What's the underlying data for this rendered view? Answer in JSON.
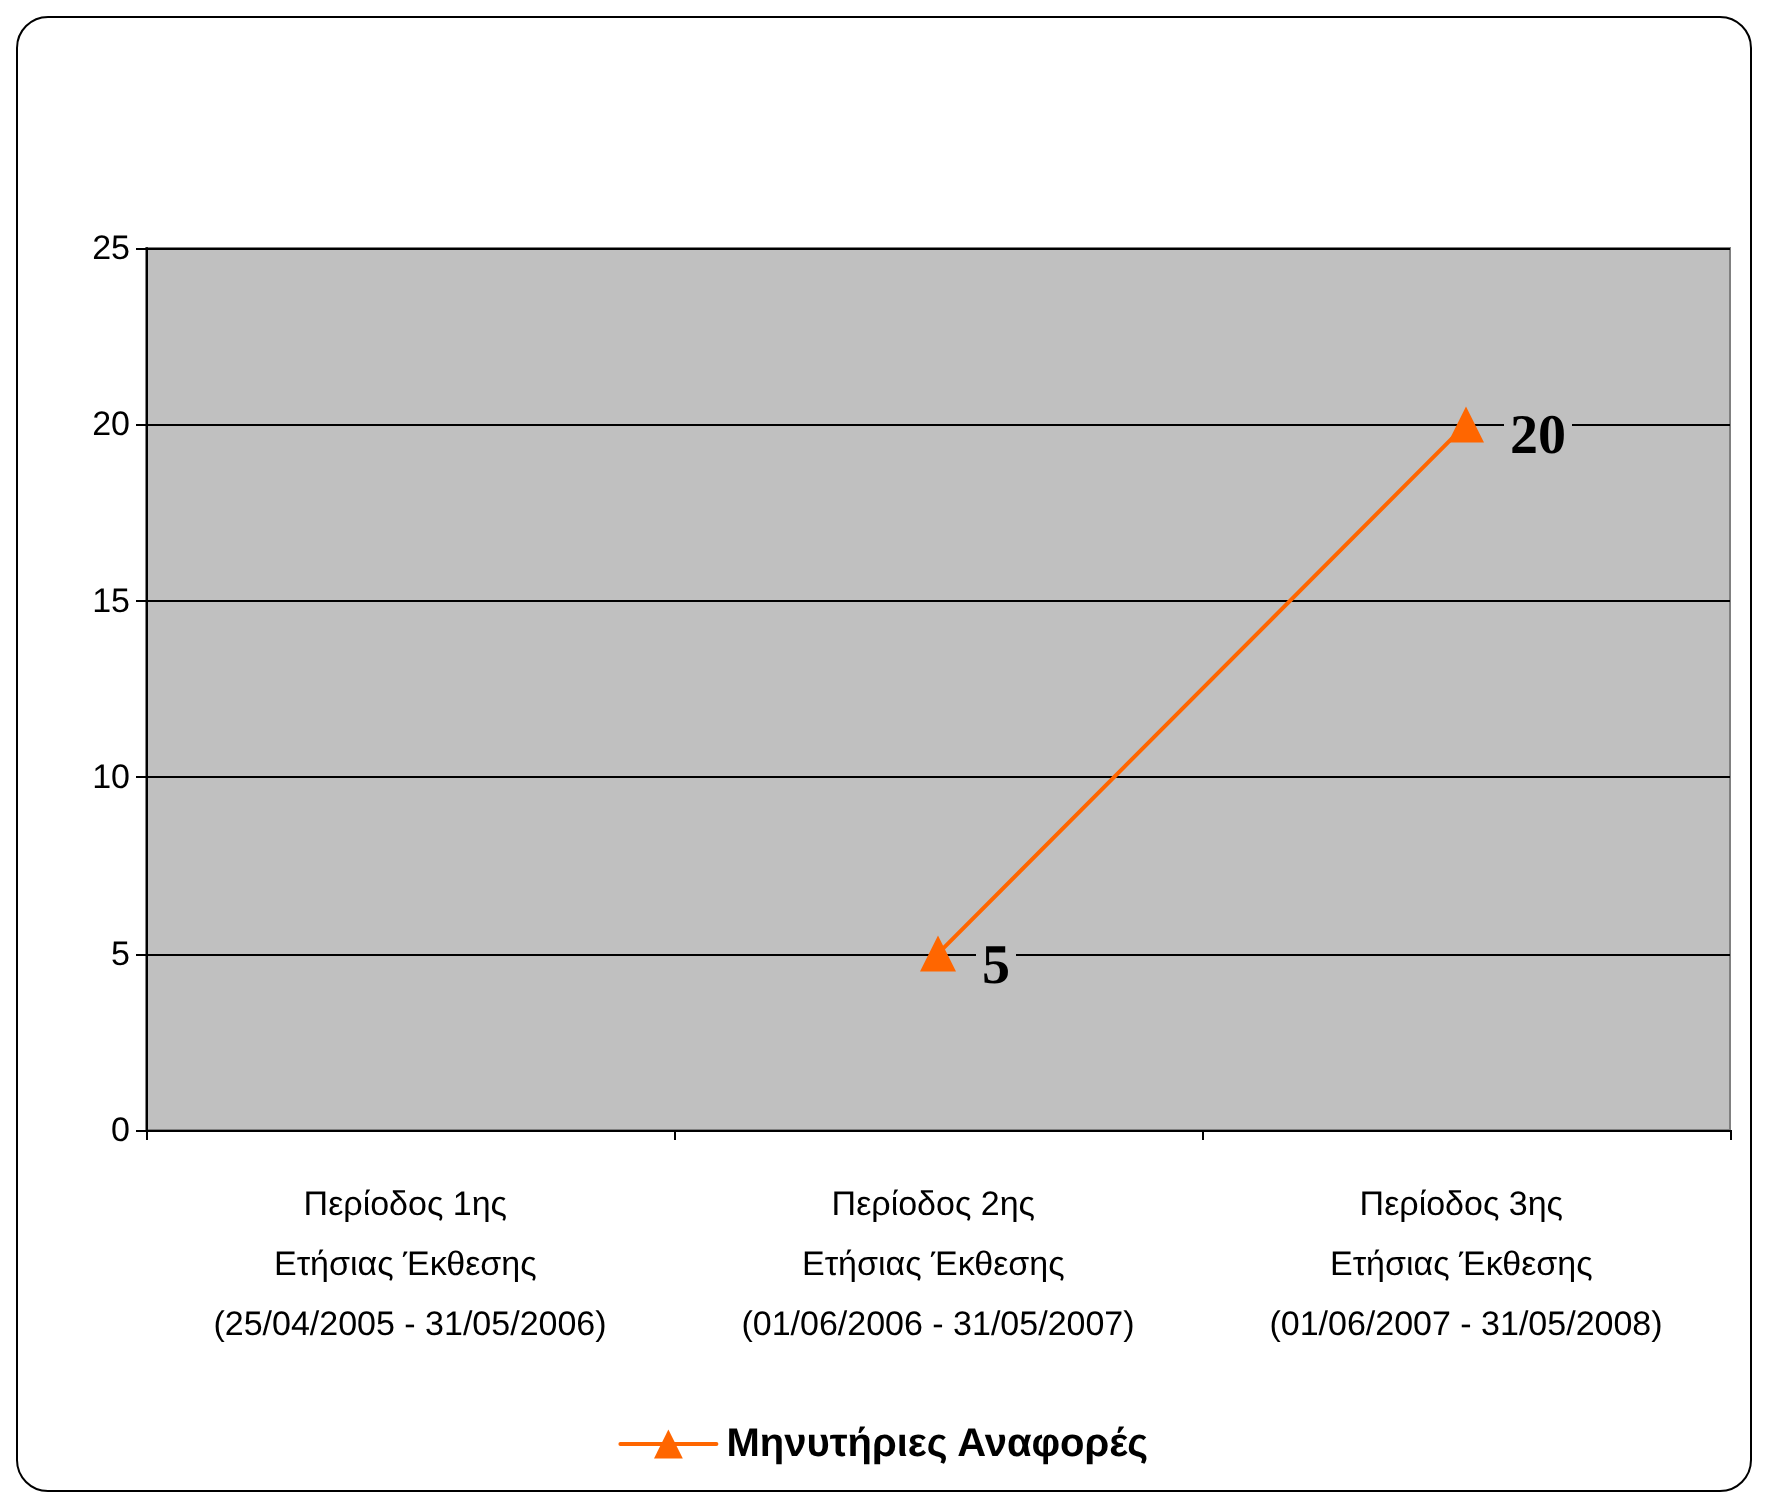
{
  "chart_data": {
    "type": "line",
    "categories": [
      "Περίοδος 1ης Ετήσιας Έκθεσης (25/04/2005 - 31/05/2006)",
      "Περίοδος 2ης Ετήσιας Έκθεσης (01/06/2006 - 31/05/2007)",
      "Περίοδος 3ης Ετήσιας Έκθεσης (01/06/2007 - 31/05/2008)"
    ],
    "series": [
      {
        "name": "Μηνυτήριες Αναφορές",
        "color": "#ff6600",
        "values": [
          null,
          5,
          20
        ]
      }
    ],
    "ylim": [
      0,
      25
    ],
    "yticks": [
      0,
      5,
      10,
      15,
      20,
      25
    ],
    "grid": "y",
    "legend": "bottom",
    "marker": "triangle",
    "line_style": "solid",
    "data_labels": true
  }
}
